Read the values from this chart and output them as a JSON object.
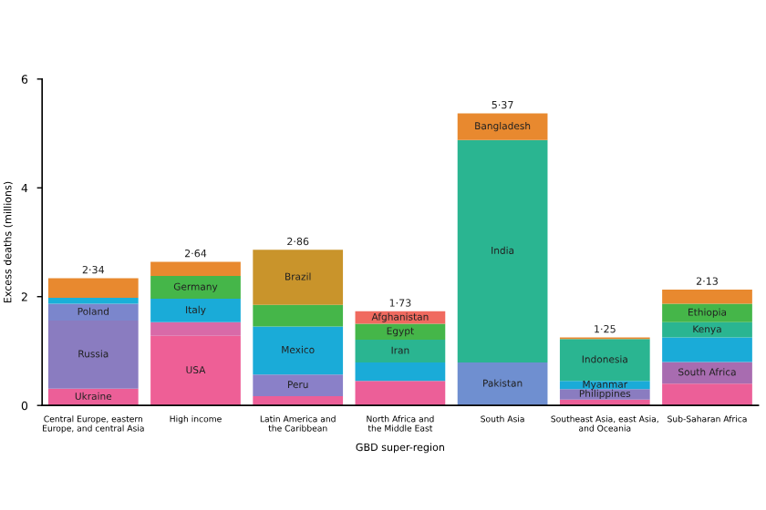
{
  "chart_data": {
    "type": "bar",
    "stacked": true,
    "xlabel": "GBD super-region",
    "ylabel": "Excess deaths (millions)",
    "categories": [
      "Central Europe, eastern\nEurope, and central Asia",
      "High income",
      "Latin America and\nthe Caribbean",
      "North Africa and\nthe Middle East",
      "South Asia",
      "Southeast Asia, east Asia,\nand Oceania",
      "Sub-Saharan Africa"
    ],
    "series": [
      {
        "values": [
          0.31,
          1.28,
          0.17,
          0.45,
          0.79,
          0.11,
          0.4
        ],
        "colors": [
          "#ec5f98",
          "#ee5f96",
          "#ec5f98",
          "#ec5f98",
          "#6f8fd0",
          "#ec5f98",
          "#ec5f98"
        ],
        "value_labels": [
          "Ukraine",
          "USA",
          null,
          null,
          "Pakistan",
          null,
          null
        ]
      },
      {
        "values": [
          1.25,
          0.25,
          0.4,
          0.34,
          4.09,
          0.19,
          0.4
        ],
        "colors": [
          "#8a7cc0",
          "#d86aa8",
          "#8a80c8",
          "#1aabd8",
          "#2ab591",
          "#8a7cc0",
          "#a86cb0"
        ],
        "value_labels": [
          "Russia",
          null,
          "Peru",
          null,
          "India",
          "Philippines",
          "South Africa"
        ]
      },
      {
        "values": [
          0.31,
          0.43,
          0.88,
          0.42,
          0.49,
          0.15,
          0.45
        ],
        "colors": [
          "#7b86cc",
          "#1aabd8",
          "#1aabd8",
          "#2ab591",
          "#e8892f",
          "#1aabd8",
          "#1aabd8"
        ],
        "value_labels": [
          "Poland",
          "Italy",
          "Mexico",
          "Iran",
          "Bangladesh",
          "Myanmar",
          null
        ]
      },
      {
        "values": [
          0.11,
          0.42,
          0.4,
          0.29,
          null,
          0.77,
          0.28
        ],
        "colors": [
          "#1ab0d8",
          "#45b649",
          "#45b649",
          "#45b649",
          "#2ab591",
          "#2ab591",
          "#2ab591"
        ],
        "value_labels": [
          null,
          "Germany",
          null,
          "Egypt",
          null,
          "Indonesia",
          "Kenya"
        ]
      },
      {
        "values": [
          0.36,
          0.26,
          1.01,
          0.23,
          null,
          0.03,
          0.34
        ],
        "colors": [
          "#e8892f",
          "#e8892f",
          "#c9942b",
          "#f06a5f",
          "#e8892f",
          "#e8892f",
          "#45b649"
        ],
        "value_labels": [
          null,
          null,
          "Brazil",
          "Afghanistan",
          null,
          null,
          "Ethiopia"
        ]
      },
      {
        "values": [
          null,
          null,
          null,
          null,
          null,
          null,
          0.26
        ],
        "colors": [
          "#e8892f",
          "#e8892f",
          "#e8892f",
          "#e8892f",
          "#e8892f",
          "#e8892f",
          "#e8892f"
        ]
      }
    ],
    "totals": [
      "2·34",
      "2·64",
      "2·86",
      "1·73",
      "5·37",
      "1·25",
      "2·13"
    ],
    "ylim": [
      0,
      6
    ],
    "yticks": [
      0,
      2,
      4,
      6
    ],
    "grid": false,
    "legend": false
  }
}
